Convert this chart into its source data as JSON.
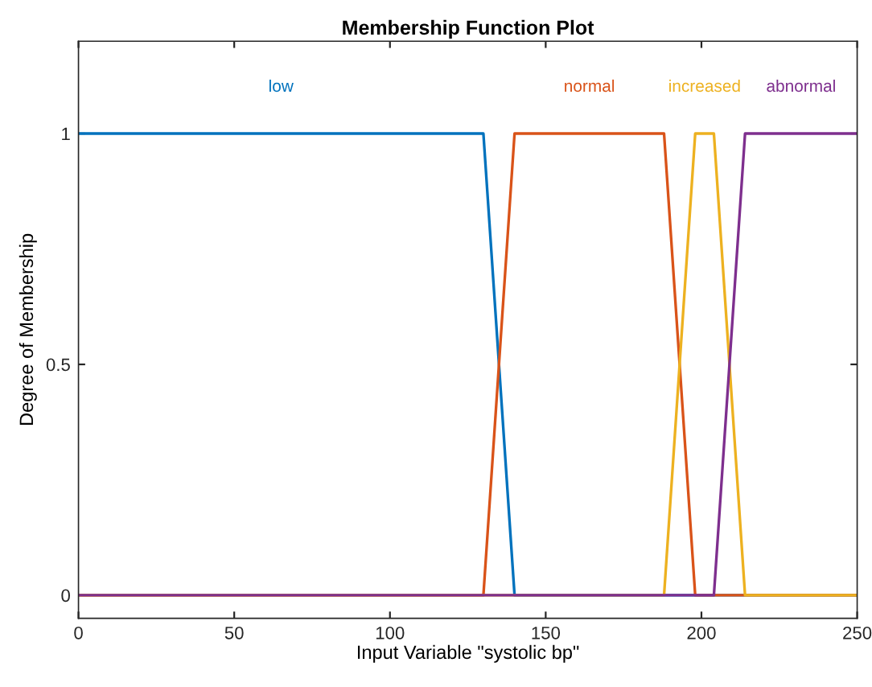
{
  "chart_data": {
    "type": "line",
    "title": "Membership Function Plot",
    "xlabel": "Input Variable \"systolic bp\"",
    "ylabel": "Degree of Membership",
    "xlim": [
      0,
      250
    ],
    "ylim": [
      -0.05,
      1.2
    ],
    "xticks": [
      0,
      50,
      100,
      150,
      200,
      250
    ],
    "yticks": [
      0,
      0.5,
      1
    ],
    "grid": false,
    "legend": false,
    "series": [
      {
        "name": "low",
        "color": "#0072bd",
        "x": [
          0,
          130,
          140,
          250
        ],
        "values": [
          1,
          1,
          0,
          0
        ]
      },
      {
        "name": "normal",
        "color": "#d95319",
        "x": [
          0,
          130,
          140,
          188,
          198,
          250
        ],
        "values": [
          0,
          0,
          1,
          1,
          0,
          0
        ]
      },
      {
        "name": "increased",
        "color": "#edb120",
        "x": [
          0,
          188,
          198,
          204,
          214,
          250
        ],
        "values": [
          0,
          0,
          1,
          1,
          0,
          0
        ]
      },
      {
        "name": "abnormal",
        "color": "#7e2f8e",
        "x": [
          0,
          204,
          214,
          250
        ],
        "values": [
          0,
          0,
          1,
          1
        ]
      }
    ]
  }
}
